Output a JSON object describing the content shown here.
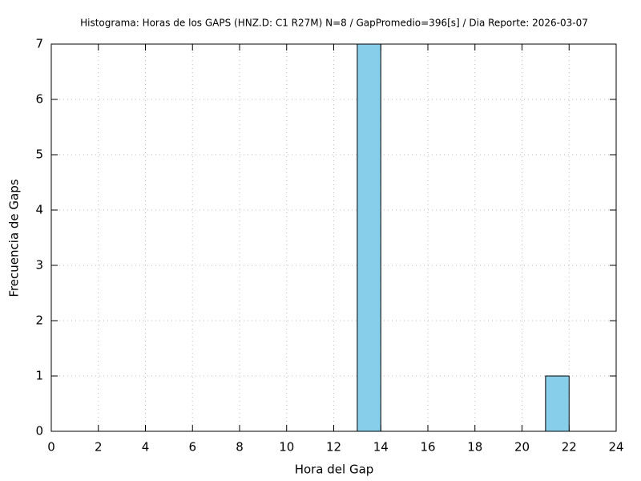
{
  "chart_data": {
    "type": "histogram",
    "title": "Histograma: Horas de los GAPS (HNZ.D: C1 R27M) N=8 / GapPromedio=396[s] / Dia Reporte: 2026-03-07",
    "xlabel": "Hora del Gap",
    "ylabel": "Frecuencia de Gaps",
    "bins": [
      0,
      1,
      2,
      3,
      4,
      5,
      6,
      7,
      8,
      9,
      10,
      11,
      12,
      13,
      14,
      15,
      16,
      17,
      18,
      19,
      20,
      21,
      22,
      23,
      24
    ],
    "values": [
      0,
      0,
      0,
      0,
      0,
      0,
      0,
      0,
      0,
      0,
      0,
      0,
      0,
      7,
      0,
      0,
      0,
      0,
      0,
      0,
      0,
      1,
      0,
      0
    ],
    "color": "#87ceeb",
    "xlim": [
      0,
      24
    ],
    "xticks": [
      0,
      2,
      4,
      6,
      8,
      10,
      12,
      14,
      16,
      18,
      20,
      22,
      24
    ],
    "ylim": [
      0,
      7
    ],
    "yticks": [
      0,
      1,
      2,
      3,
      4,
      5,
      6,
      7
    ],
    "grid": true
  }
}
